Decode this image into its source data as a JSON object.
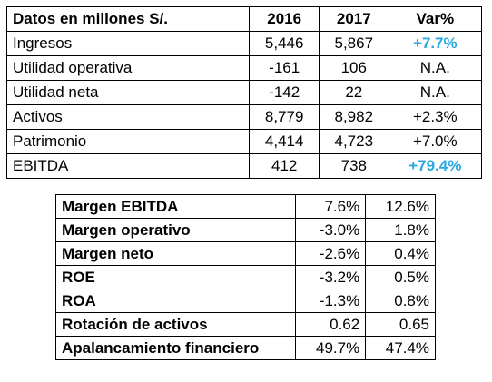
{
  "table_financials": {
    "header": [
      "Datos en millones S/.",
      "2016",
      "2017",
      "Var%"
    ],
    "rows": [
      {
        "label": "Ingresos",
        "y2016": "5,446",
        "y2017": "5,867",
        "var": "+7.7%",
        "highlight": true
      },
      {
        "label": "Utilidad operativa",
        "y2016": "-161",
        "y2017": "106",
        "var": "N.A.",
        "highlight": false
      },
      {
        "label": "Utilidad neta",
        "y2016": "-142",
        "y2017": "22",
        "var": "N.A.",
        "highlight": false
      },
      {
        "label": "Activos",
        "y2016": "8,779",
        "y2017": "8,982",
        "var": "+2.3%",
        "highlight": false
      },
      {
        "label": "Patrimonio",
        "y2016": "4,414",
        "y2017": "4,723",
        "var": "+7.0%",
        "highlight": false
      },
      {
        "label": "EBITDA",
        "y2016": "412",
        "y2017": "738",
        "var": "+79.4%",
        "highlight": true
      }
    ],
    "highlight_color": "#29a9e1"
  },
  "table_ratios": {
    "rows": [
      {
        "label": "Margen EBITDA",
        "y2016": "7.6%",
        "y2017": "12.6%"
      },
      {
        "label": "Margen operativo",
        "y2016": "-3.0%",
        "y2017": "1.8%"
      },
      {
        "label": "Margen neto",
        "y2016": "-2.6%",
        "y2017": "0.4%"
      },
      {
        "label": "ROE",
        "y2016": "-3.2%",
        "y2017": "0.5%"
      },
      {
        "label": "ROA",
        "y2016": "-1.3%",
        "y2017": "0.8%"
      },
      {
        "label": "Rotación de activos",
        "y2016": "0.62",
        "y2017": "0.65"
      },
      {
        "label": "Apalancamiento financiero",
        "y2016": "49.7%",
        "y2017": "47.4%"
      }
    ]
  }
}
